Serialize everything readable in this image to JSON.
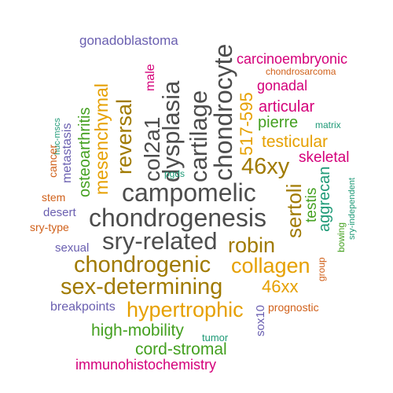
{
  "palette": {
    "dark_gray": "#4d4d4d",
    "orange": "#e6a000",
    "olive": "#a07a00",
    "green": "#44a020",
    "magenta": "#d4007a",
    "purple": "#6a5fb0",
    "teal": "#1f9a77",
    "rust": "#d0601a"
  },
  "words": [
    {
      "text": "gonadoblastoma",
      "color": "#6a5fb0"
    },
    {
      "text": "chondrocyte",
      "color": "#4d4d4d"
    },
    {
      "text": "carcinoembryonic",
      "color": "#d4007a"
    },
    {
      "text": "chondrosarcoma",
      "color": "#d0601a"
    },
    {
      "text": "dysplasia",
      "color": "#4d4d4d"
    },
    {
      "text": "cartilage",
      "color": "#4d4d4d"
    },
    {
      "text": "male",
      "color": "#d4007a"
    },
    {
      "text": "517-595",
      "color": "#e6a000"
    },
    {
      "text": "gonadal",
      "color": "#d4007a"
    },
    {
      "text": "col2a1",
      "color": "#4d4d4d"
    },
    {
      "text": "reversal",
      "color": "#a07a00"
    },
    {
      "text": "mesenchymal",
      "color": "#e6a000"
    },
    {
      "text": "osteoarthritis",
      "color": "#44a020"
    },
    {
      "text": "articular",
      "color": "#d4007a"
    },
    {
      "text": "pierre",
      "color": "#44a020"
    },
    {
      "text": "matrix",
      "color": "#1f9a77"
    },
    {
      "text": "huc-mscs",
      "color": "#1f9a77"
    },
    {
      "text": "testicular",
      "color": "#e6a000"
    },
    {
      "text": "metastasis",
      "color": "#6a5fb0"
    },
    {
      "text": "cancer",
      "color": "#d0601a"
    },
    {
      "text": "46xy",
      "color": "#a07a00"
    },
    {
      "text": "skeletal",
      "color": "#d4007a"
    },
    {
      "text": "pgds",
      "color": "#1f9a77"
    },
    {
      "text": "sertoli",
      "color": "#a07a00"
    },
    {
      "text": "aggrecan",
      "color": "#1f9a77"
    },
    {
      "text": "campomelic",
      "color": "#4d4d4d"
    },
    {
      "text": "stem",
      "color": "#d0601a"
    },
    {
      "text": "testis",
      "color": "#44a020"
    },
    {
      "text": "sry-independent",
      "color": "#1f9a77"
    },
    {
      "text": "desert",
      "color": "#6a5fb0"
    },
    {
      "text": "chondrogenesis",
      "color": "#4d4d4d"
    },
    {
      "text": "sry-type",
      "color": "#d0601a"
    },
    {
      "text": "sry-related",
      "color": "#4d4d4d"
    },
    {
      "text": "robin",
      "color": "#a07a00"
    },
    {
      "text": "bowing",
      "color": "#44a020"
    },
    {
      "text": "sexual",
      "color": "#6a5fb0"
    },
    {
      "text": "chondrogenic",
      "color": "#a07a00"
    },
    {
      "text": "collagen",
      "color": "#e6a000"
    },
    {
      "text": "group",
      "color": "#d0601a"
    },
    {
      "text": "sex-determining",
      "color": "#a07a00"
    },
    {
      "text": "46xx",
      "color": "#e6a000"
    },
    {
      "text": "hypertrophic",
      "color": "#e6a000"
    },
    {
      "text": "breakpoints",
      "color": "#6a5fb0"
    },
    {
      "text": "prognostic",
      "color": "#d0601a"
    },
    {
      "text": "sox10",
      "color": "#6a5fb0"
    },
    {
      "text": "high-mobility",
      "color": "#44a020"
    },
    {
      "text": "tumor",
      "color": "#1f9a77"
    },
    {
      "text": "cord-stromal",
      "color": "#44a020"
    },
    {
      "text": "immunohistochemistry",
      "color": "#d4007a"
    }
  ]
}
